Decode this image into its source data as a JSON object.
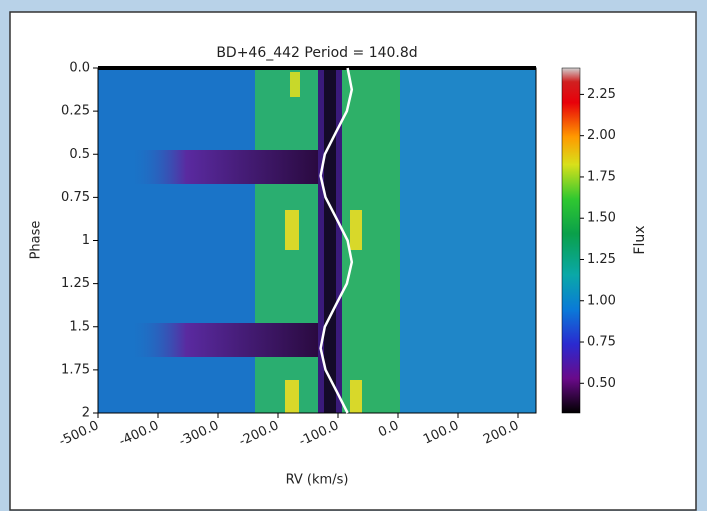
{
  "chart_data": {
    "type": "heatmap",
    "title": "BD+46_442 Period = 140.8d",
    "x_label": "RV (km/s)",
    "y_label": "Phase",
    "colorbar_label": "Flux",
    "xlim": [
      -500,
      230
    ],
    "ylim": [
      0,
      2
    ],
    "y_inverted": true,
    "xticks": [
      {
        "value": -500,
        "label": "-500.0"
      },
      {
        "value": -400,
        "label": "-400.0"
      },
      {
        "value": -300,
        "label": "-300.0"
      },
      {
        "value": -200,
        "label": "-200.0"
      },
      {
        "value": -100,
        "label": "-100.0"
      },
      {
        "value": 0,
        "label": "0.0"
      },
      {
        "value": 100,
        "label": "100.0"
      },
      {
        "value": 200,
        "label": "200.0"
      }
    ],
    "yticks": [
      {
        "value": 0,
        "label": "0.0"
      },
      0.25,
      0.5,
      0.75,
      1,
      1.25,
      1.5,
      1.75,
      2
    ],
    "clim": [
      0.32,
      2.41
    ],
    "colorbar_ticks": [
      {
        "value": 0.5,
        "label": "0.50"
      },
      0.75,
      {
        "value": 1,
        "label": "1.00"
      },
      1.25,
      {
        "value": 1.5,
        "label": "1.50"
      },
      1.75,
      {
        "value": 2,
        "label": "2.00"
      },
      2.25
    ],
    "curve": {
      "color": "#ffffff",
      "rv": [
        -84.0,
        -77.0,
        -85.2,
        -103.8,
        -122.0,
        -129.0,
        -120.8,
        -102.2,
        -84.0,
        -77.0,
        -85.2,
        -103.8,
        -122.0,
        -129.0,
        -120.8,
        -102.2,
        -84.0
      ],
      "phase": [
        0,
        0.125,
        0.25,
        0.375,
        0.5,
        0.625,
        0.75,
        0.875,
        1,
        1.125,
        1.25,
        1.375,
        1.5,
        1.625,
        1.75,
        1.875,
        2
      ]
    }
  }
}
